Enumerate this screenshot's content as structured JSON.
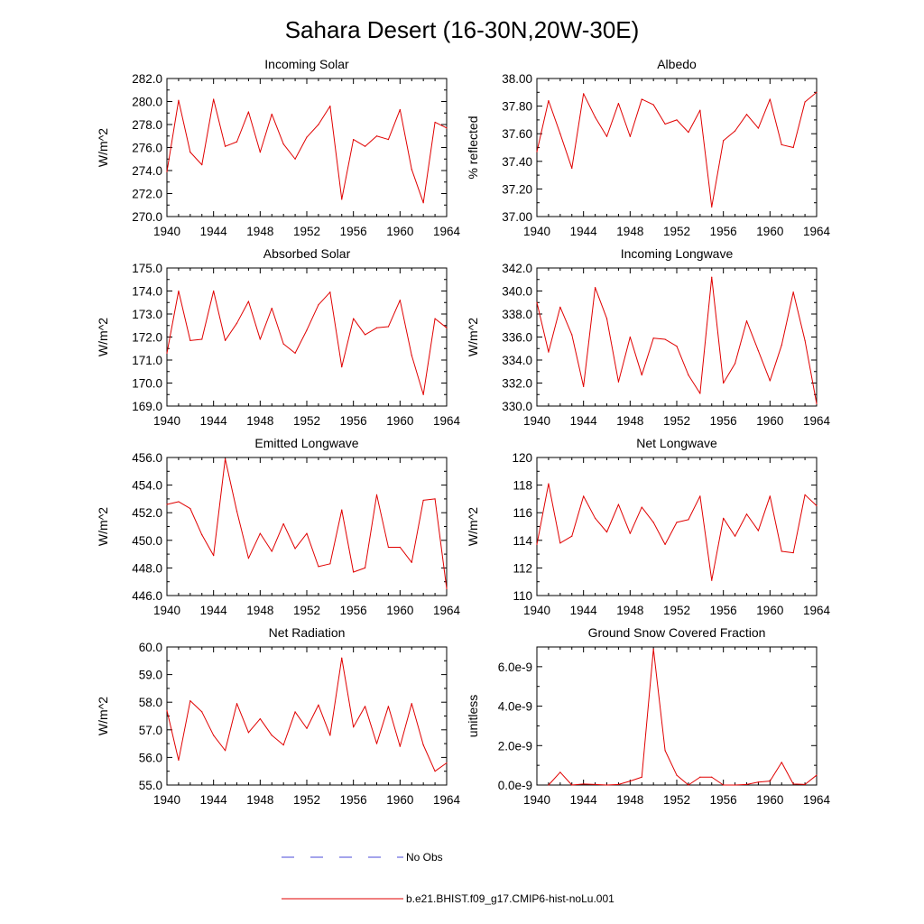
{
  "figure": {
    "title": "Sahara Desert (16-30N,20W-30E)"
  },
  "legend": {
    "entries": [
      {
        "label": "No Obs",
        "style": "dashed",
        "color": "#4a4ad9"
      },
      {
        "label": "b.e21.BHIST.f09_g17.CMIP6-hist-noLu.001",
        "style": "solid",
        "color": "#e00000"
      }
    ]
  },
  "colors": {
    "series": "#e00000",
    "axis": "#000000",
    "obs": "#4a4ad9"
  },
  "chart_data": [
    {
      "type": "line",
      "title": "Incoming Solar",
      "ylabel": "W/m^2",
      "xlim": [
        1940,
        1964
      ],
      "ylim": [
        270.0,
        282.0
      ],
      "xticks": [
        "1940",
        "1944",
        "1948",
        "1952",
        "1956",
        "1960",
        "1964"
      ],
      "yticks": [
        "270.0",
        "272.0",
        "274.0",
        "276.0",
        "278.0",
        "280.0",
        "282.0"
      ],
      "grid": false,
      "x": [
        1940,
        1941,
        1942,
        1943,
        1944,
        1945,
        1946,
        1947,
        1948,
        1949,
        1950,
        1951,
        1952,
        1953,
        1954,
        1955,
        1956,
        1957,
        1958,
        1959,
        1960,
        1961,
        1962,
        1963,
        1964
      ],
      "series": [
        {
          "name": "b.e21.BHIST.f09_g17.CMIP6-hist-noLu.001",
          "values": [
            273.9,
            280.1,
            275.6,
            274.5,
            280.2,
            276.1,
            276.5,
            279.1,
            275.6,
            278.9,
            276.3,
            275.0,
            276.9,
            278.0,
            279.6,
            271.5,
            276.7,
            276.1,
            277.0,
            276.7,
            279.3,
            274.1,
            271.2,
            278.2,
            277.7
          ]
        }
      ]
    },
    {
      "type": "line",
      "title": "Albedo",
      "ylabel": "% reflected",
      "xlim": [
        1940,
        1964
      ],
      "ylim": [
        37.0,
        38.0
      ],
      "xticks": [
        "1940",
        "1944",
        "1948",
        "1952",
        "1956",
        "1960",
        "1964"
      ],
      "yticks": [
        "37.00",
        "37.20",
        "37.40",
        "37.60",
        "37.80",
        "38.00"
      ],
      "grid": false,
      "x": [
        1940,
        1941,
        1942,
        1943,
        1944,
        1945,
        1946,
        1947,
        1948,
        1949,
        1950,
        1951,
        1952,
        1953,
        1954,
        1955,
        1956,
        1957,
        1958,
        1959,
        1960,
        1961,
        1962,
        1963,
        1964
      ],
      "series": [
        {
          "name": "b.e21.BHIST.f09_g17.CMIP6-hist-noLu.001",
          "values": [
            37.47,
            37.84,
            37.6,
            37.35,
            37.89,
            37.72,
            37.58,
            37.82,
            37.58,
            37.85,
            37.81,
            37.67,
            37.7,
            37.61,
            37.77,
            37.07,
            37.55,
            37.62,
            37.74,
            37.64,
            37.85,
            37.52,
            37.5,
            37.83,
            37.9
          ]
        }
      ]
    },
    {
      "type": "line",
      "title": "Absorbed Solar",
      "ylabel": "W/m^2",
      "xlim": [
        1940,
        1964
      ],
      "ylim": [
        169.0,
        175.0
      ],
      "xticks": [
        "1940",
        "1944",
        "1948",
        "1952",
        "1956",
        "1960",
        "1964"
      ],
      "yticks": [
        "169.0",
        "170.0",
        "171.0",
        "172.0",
        "173.0",
        "174.0",
        "175.0"
      ],
      "grid": false,
      "x": [
        1940,
        1941,
        1942,
        1943,
        1944,
        1945,
        1946,
        1947,
        1948,
        1949,
        1950,
        1951,
        1952,
        1953,
        1954,
        1955,
        1956,
        1957,
        1958,
        1959,
        1960,
        1961,
        1962,
        1963,
        1964
      ],
      "series": [
        {
          "name": "b.e21.BHIST.f09_g17.CMIP6-hist-noLu.001",
          "values": [
            171.3,
            174.0,
            171.85,
            171.9,
            174.0,
            171.85,
            172.6,
            173.55,
            171.9,
            173.25,
            171.7,
            171.3,
            172.3,
            173.4,
            173.95,
            170.7,
            172.8,
            172.1,
            172.4,
            172.45,
            173.6,
            171.2,
            169.5,
            172.8,
            172.4
          ]
        }
      ]
    },
    {
      "type": "line",
      "title": "Incoming Longwave",
      "ylabel": "W/m^2",
      "xlim": [
        1940,
        1964
      ],
      "ylim": [
        330.0,
        342.0
      ],
      "xticks": [
        "1940",
        "1944",
        "1948",
        "1952",
        "1956",
        "1960",
        "1964"
      ],
      "yticks": [
        "330.0",
        "332.0",
        "334.0",
        "336.0",
        "338.0",
        "340.0",
        "342.0"
      ],
      "grid": false,
      "x": [
        1940,
        1941,
        1942,
        1943,
        1944,
        1945,
        1946,
        1947,
        1948,
        1949,
        1950,
        1951,
        1952,
        1953,
        1954,
        1955,
        1956,
        1957,
        1958,
        1959,
        1960,
        1961,
        1962,
        1963,
        1964
      ],
      "series": [
        {
          "name": "b.e21.BHIST.f09_g17.CMIP6-hist-noLu.001",
          "values": [
            339.0,
            334.7,
            338.6,
            336.2,
            331.7,
            340.3,
            337.6,
            332.1,
            336.0,
            332.7,
            335.9,
            335.8,
            335.2,
            332.7,
            331.1,
            341.2,
            332.0,
            333.7,
            337.4,
            334.8,
            332.2,
            335.3,
            339.9,
            335.7,
            330.2
          ]
        }
      ]
    },
    {
      "type": "line",
      "title": "Emitted Longwave",
      "ylabel": "W/m^2",
      "xlim": [
        1940,
        1964
      ],
      "ylim": [
        446.0,
        456.0
      ],
      "xticks": [
        "1940",
        "1944",
        "1948",
        "1952",
        "1956",
        "1960",
        "1964"
      ],
      "yticks": [
        "446.0",
        "448.0",
        "450.0",
        "452.0",
        "454.0",
        "456.0"
      ],
      "grid": false,
      "x": [
        1940,
        1941,
        1942,
        1943,
        1944,
        1945,
        1946,
        1947,
        1948,
        1949,
        1950,
        1951,
        1952,
        1953,
        1954,
        1955,
        1956,
        1957,
        1958,
        1959,
        1960,
        1961,
        1962,
        1963,
        1964
      ],
      "series": [
        {
          "name": "b.e21.BHIST.f09_g17.CMIP6-hist-noLu.001",
          "values": [
            452.6,
            452.8,
            452.3,
            450.4,
            448.9,
            455.9,
            452.1,
            448.7,
            450.5,
            449.2,
            451.2,
            449.4,
            450.5,
            448.1,
            448.3,
            452.2,
            447.7,
            448.0,
            453.3,
            449.5,
            449.5,
            448.4,
            452.9,
            453.0,
            446.5
          ]
        }
      ]
    },
    {
      "type": "line",
      "title": "Net Longwave",
      "ylabel": "W/m^2",
      "xlim": [
        1940,
        1964
      ],
      "ylim": [
        110,
        120
      ],
      "xticks": [
        "1940",
        "1944",
        "1948",
        "1952",
        "1956",
        "1960",
        "1964"
      ],
      "yticks": [
        "110",
        "112",
        "114",
        "116",
        "118",
        "120"
      ],
      "grid": false,
      "x": [
        1940,
        1941,
        1942,
        1943,
        1944,
        1945,
        1946,
        1947,
        1948,
        1949,
        1950,
        1951,
        1952,
        1953,
        1954,
        1955,
        1956,
        1957,
        1958,
        1959,
        1960,
        1961,
        1962,
        1963,
        1964
      ],
      "series": [
        {
          "name": "b.e21.BHIST.f09_g17.CMIP6-hist-noLu.001",
          "values": [
            113.7,
            118.1,
            113.8,
            114.3,
            117.2,
            115.6,
            114.6,
            116.6,
            114.5,
            116.4,
            115.3,
            113.7,
            115.3,
            115.5,
            117.2,
            111.1,
            115.6,
            114.3,
            115.9,
            114.7,
            117.2,
            113.2,
            113.1,
            117.3,
            116.5
          ]
        }
      ]
    },
    {
      "type": "line",
      "title": "Net Radiation",
      "ylabel": "W/m^2",
      "xlim": [
        1940,
        1964
      ],
      "ylim": [
        55.0,
        60.0
      ],
      "xticks": [
        "1940",
        "1944",
        "1948",
        "1952",
        "1956",
        "1960",
        "1964"
      ],
      "yticks": [
        "55.0",
        "56.0",
        "57.0",
        "58.0",
        "59.0",
        "60.0"
      ],
      "grid": false,
      "x": [
        1940,
        1941,
        1942,
        1943,
        1944,
        1945,
        1946,
        1947,
        1948,
        1949,
        1950,
        1951,
        1952,
        1953,
        1954,
        1955,
        1956,
        1957,
        1958,
        1959,
        1960,
        1961,
        1962,
        1963,
        1964
      ],
      "series": [
        {
          "name": "b.e21.BHIST.f09_g17.CMIP6-hist-noLu.001",
          "values": [
            57.7,
            55.9,
            58.05,
            57.65,
            56.8,
            56.25,
            57.95,
            56.9,
            57.4,
            56.8,
            56.45,
            57.65,
            57.05,
            57.9,
            56.8,
            59.6,
            57.1,
            57.85,
            56.5,
            57.85,
            56.4,
            57.95,
            56.45,
            55.5,
            55.8
          ]
        }
      ]
    },
    {
      "type": "line",
      "title": "Ground Snow Covered Fraction",
      "ylabel": "unitless",
      "xlim": [
        1940,
        1964
      ],
      "ylim": [
        0.0,
        7e-09
      ],
      "xticks": [
        "1940",
        "1944",
        "1948",
        "1952",
        "1956",
        "1960",
        "1964"
      ],
      "ytick_values": [
        0.0,
        2e-09,
        4e-09,
        6e-09
      ],
      "yticks": [
        "0.0e-9",
        "2.0e-9",
        "4.0e-9",
        "6.0e-9"
      ],
      "grid": false,
      "x": [
        1941,
        1942,
        1943,
        1944,
        1945,
        1946,
        1947,
        1948,
        1949,
        1950,
        1951,
        1952,
        1953,
        1954,
        1955,
        1956,
        1957,
        1958,
        1959,
        1960,
        1961,
        1962,
        1963,
        1964
      ],
      "series": [
        {
          "name": "b.e21.BHIST.f09_g17.CMIP6-hist-noLu.001",
          "values": [
            0.0,
            6.5e-10,
            0.0,
            5e-11,
            3e-11,
            0.0,
            3e-11,
            2e-10,
            4e-10,
            6.9e-09,
            1.75e-09,
            5e-10,
            0.0,
            4e-10,
            4e-10,
            0.0,
            0.0,
            3e-11,
            1.5e-10,
            2e-10,
            1.15e-09,
            5e-11,
            3e-11,
            5e-10
          ]
        }
      ]
    }
  ]
}
